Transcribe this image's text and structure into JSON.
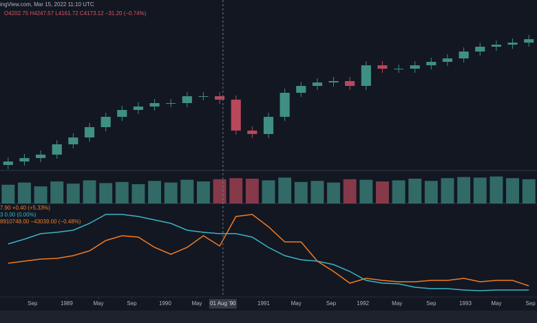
{
  "header": {
    "source": "ingView.com, Mar 15, 2022 11:10 UTC",
    "ohlc": "O4202.75 H4247.57 L4161.72 C4173.12 −31.20 (−0.74%)"
  },
  "chart_data": {
    "type": "candlestick",
    "open": [
      258,
      263,
      268,
      273,
      288,
      298,
      313,
      328,
      338,
      343,
      348,
      348,
      358,
      358,
      353,
      308,
      303,
      328,
      363,
      373,
      378,
      380,
      373,
      403,
      398,
      398,
      403,
      408,
      413,
      423,
      430,
      433,
      436
    ],
    "high": [
      269,
      274,
      279,
      294,
      304,
      319,
      334,
      344,
      349,
      354,
      354,
      364,
      364,
      364,
      359,
      314,
      334,
      369,
      379,
      384,
      386,
      386,
      409,
      409,
      404,
      409,
      414,
      419,
      429,
      436,
      439,
      442,
      447
    ],
    "low": [
      252,
      257,
      262,
      267,
      282,
      292,
      307,
      322,
      332,
      337,
      342,
      342,
      352,
      347,
      302,
      297,
      297,
      322,
      357,
      367,
      372,
      367,
      367,
      392,
      392,
      392,
      397,
      402,
      407,
      417,
      424,
      427,
      430
    ],
    "close": [
      263,
      268,
      273,
      288,
      298,
      313,
      328,
      338,
      343,
      348,
      348,
      358,
      358,
      353,
      308,
      303,
      328,
      363,
      373,
      378,
      380,
      373,
      403,
      398,
      398,
      403,
      408,
      413,
      423,
      430,
      433,
      436,
      441
    ],
    "volume": [
      34,
      38,
      31,
      40,
      36,
      42,
      37,
      39,
      35,
      41,
      38,
      43,
      40,
      44,
      46,
      45,
      42,
      47,
      39,
      41,
      38,
      44,
      43,
      40,
      42,
      45,
      41,
      46,
      48,
      47,
      49,
      46,
      44
    ],
    "ylim": [
      250,
      478
    ],
    "volume_ylim": [
      0,
      60
    ],
    "xlim": [
      0,
      33
    ],
    "up_color": "#3f8f84",
    "down_color": "#b8485a",
    "indicators": {
      "ylim": [
        0,
        136
      ],
      "series": [
        {
          "name": "8910748.00 −43039.00 (−0.48%)",
          "color": "#f57c1f",
          "values": [
            49,
            52,
            55,
            56,
            60,
            67,
            82,
            89,
            87,
            72,
            62,
            72,
            89,
            74,
            117,
            120,
            102,
            80,
            80,
            52,
            37,
            20,
            27,
            24,
            22,
            22,
            24,
            24,
            27,
            22,
            24,
            24,
            16
          ]
        },
        {
          "name": "3 0.00 (0.00%)",
          "color": "#3ab5c6",
          "values": [
            77,
            84,
            92,
            94,
            97,
            107,
            120,
            120,
            117,
            112,
            107,
            97,
            94,
            92,
            92,
            87,
            72,
            60,
            54,
            52,
            47,
            37,
            24,
            20,
            19,
            14,
            12,
            12,
            10,
            9,
            10,
            10,
            10
          ]
        }
      ],
      "extra_label": "7.90 +0.40 (+5.33%)"
    },
    "xticks": [
      {
        "value": 2.0,
        "label": "Sep"
      },
      {
        "value": 4.1,
        "label": "1989"
      },
      {
        "value": 6.05,
        "label": "May"
      },
      {
        "value": 8.1,
        "label": "Sep"
      },
      {
        "value": 10.15,
        "label": "1990"
      },
      {
        "value": 12.1,
        "label": "May"
      },
      {
        "value": 16.2,
        "label": "1991"
      },
      {
        "value": 18.2,
        "label": "May"
      },
      {
        "value": 20.35,
        "label": "Sep"
      },
      {
        "value": 22.3,
        "label": "1992"
      },
      {
        "value": 24.4,
        "label": "May"
      },
      {
        "value": 26.5,
        "label": "Sep"
      },
      {
        "value": 28.6,
        "label": "1993"
      },
      {
        "value": 30.5,
        "label": "May"
      },
      {
        "value": 32.6,
        "label": "Sep"
      }
    ],
    "crosshair": {
      "value": 13.7,
      "label": "01 Aug '90"
    }
  }
}
